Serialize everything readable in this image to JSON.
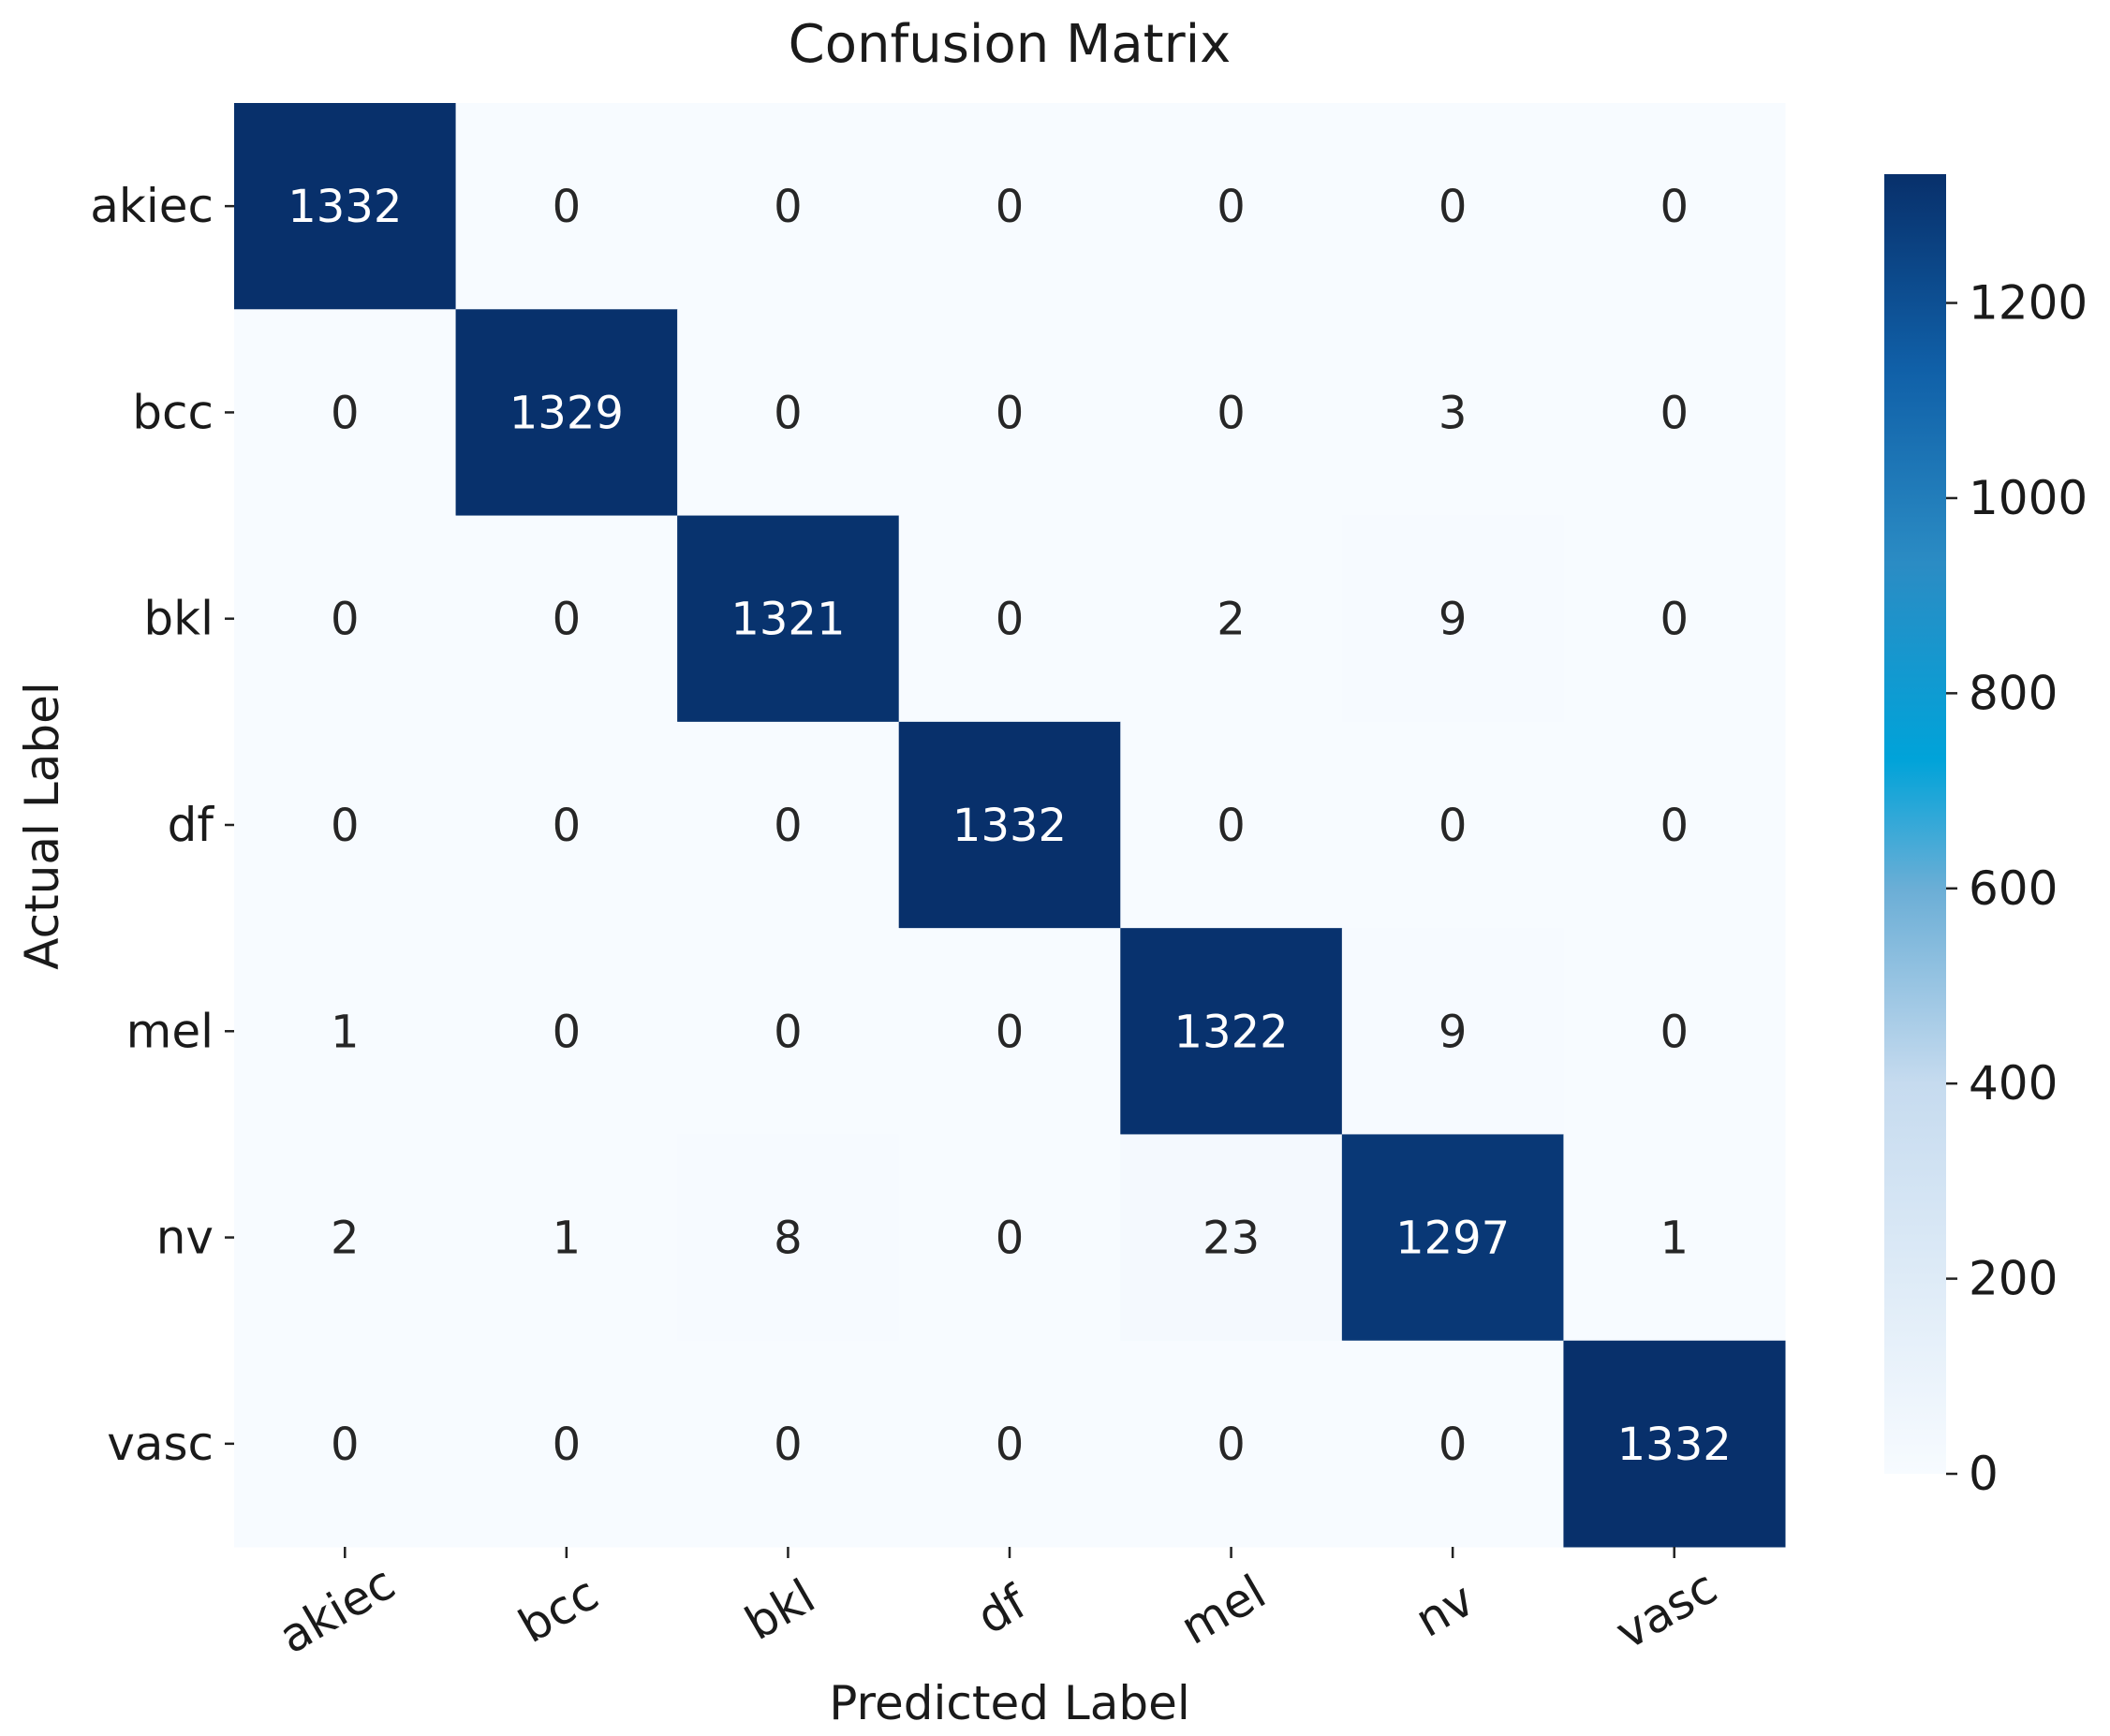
{
  "chart_data": {
    "type": "heatmap",
    "title": "Confusion Matrix",
    "xlabel": "Predicted Label",
    "ylabel": "Actual Label",
    "x_categories": [
      "akiec",
      "bcc",
      "bkl",
      "df",
      "mel",
      "nv",
      "vasc"
    ],
    "y_categories": [
      "akiec",
      "bcc",
      "bkl",
      "df",
      "mel",
      "nv",
      "vasc"
    ],
    "values": [
      [
        1332,
        0,
        0,
        0,
        0,
        0,
        0
      ],
      [
        0,
        1329,
        0,
        0,
        0,
        3,
        0
      ],
      [
        0,
        0,
        1321,
        0,
        2,
        9,
        0
      ],
      [
        0,
        0,
        0,
        1332,
        0,
        0,
        0
      ],
      [
        1,
        0,
        0,
        0,
        1322,
        9,
        0
      ],
      [
        2,
        1,
        8,
        0,
        23,
        1297,
        1
      ],
      [
        0,
        0,
        0,
        0,
        0,
        0,
        1332
      ]
    ],
    "colorbar": {
      "min": 0,
      "max": 1332,
      "ticks": [
        0,
        200,
        400,
        600,
        800,
        1000,
        1200
      ],
      "colormap": "Blues",
      "colors": [
        "#f7fbff",
        "#c6dbef",
        "#6baed6",
        "#00a3d9",
        "#2171b5",
        "#08306b"
      ]
    },
    "grid": false
  }
}
